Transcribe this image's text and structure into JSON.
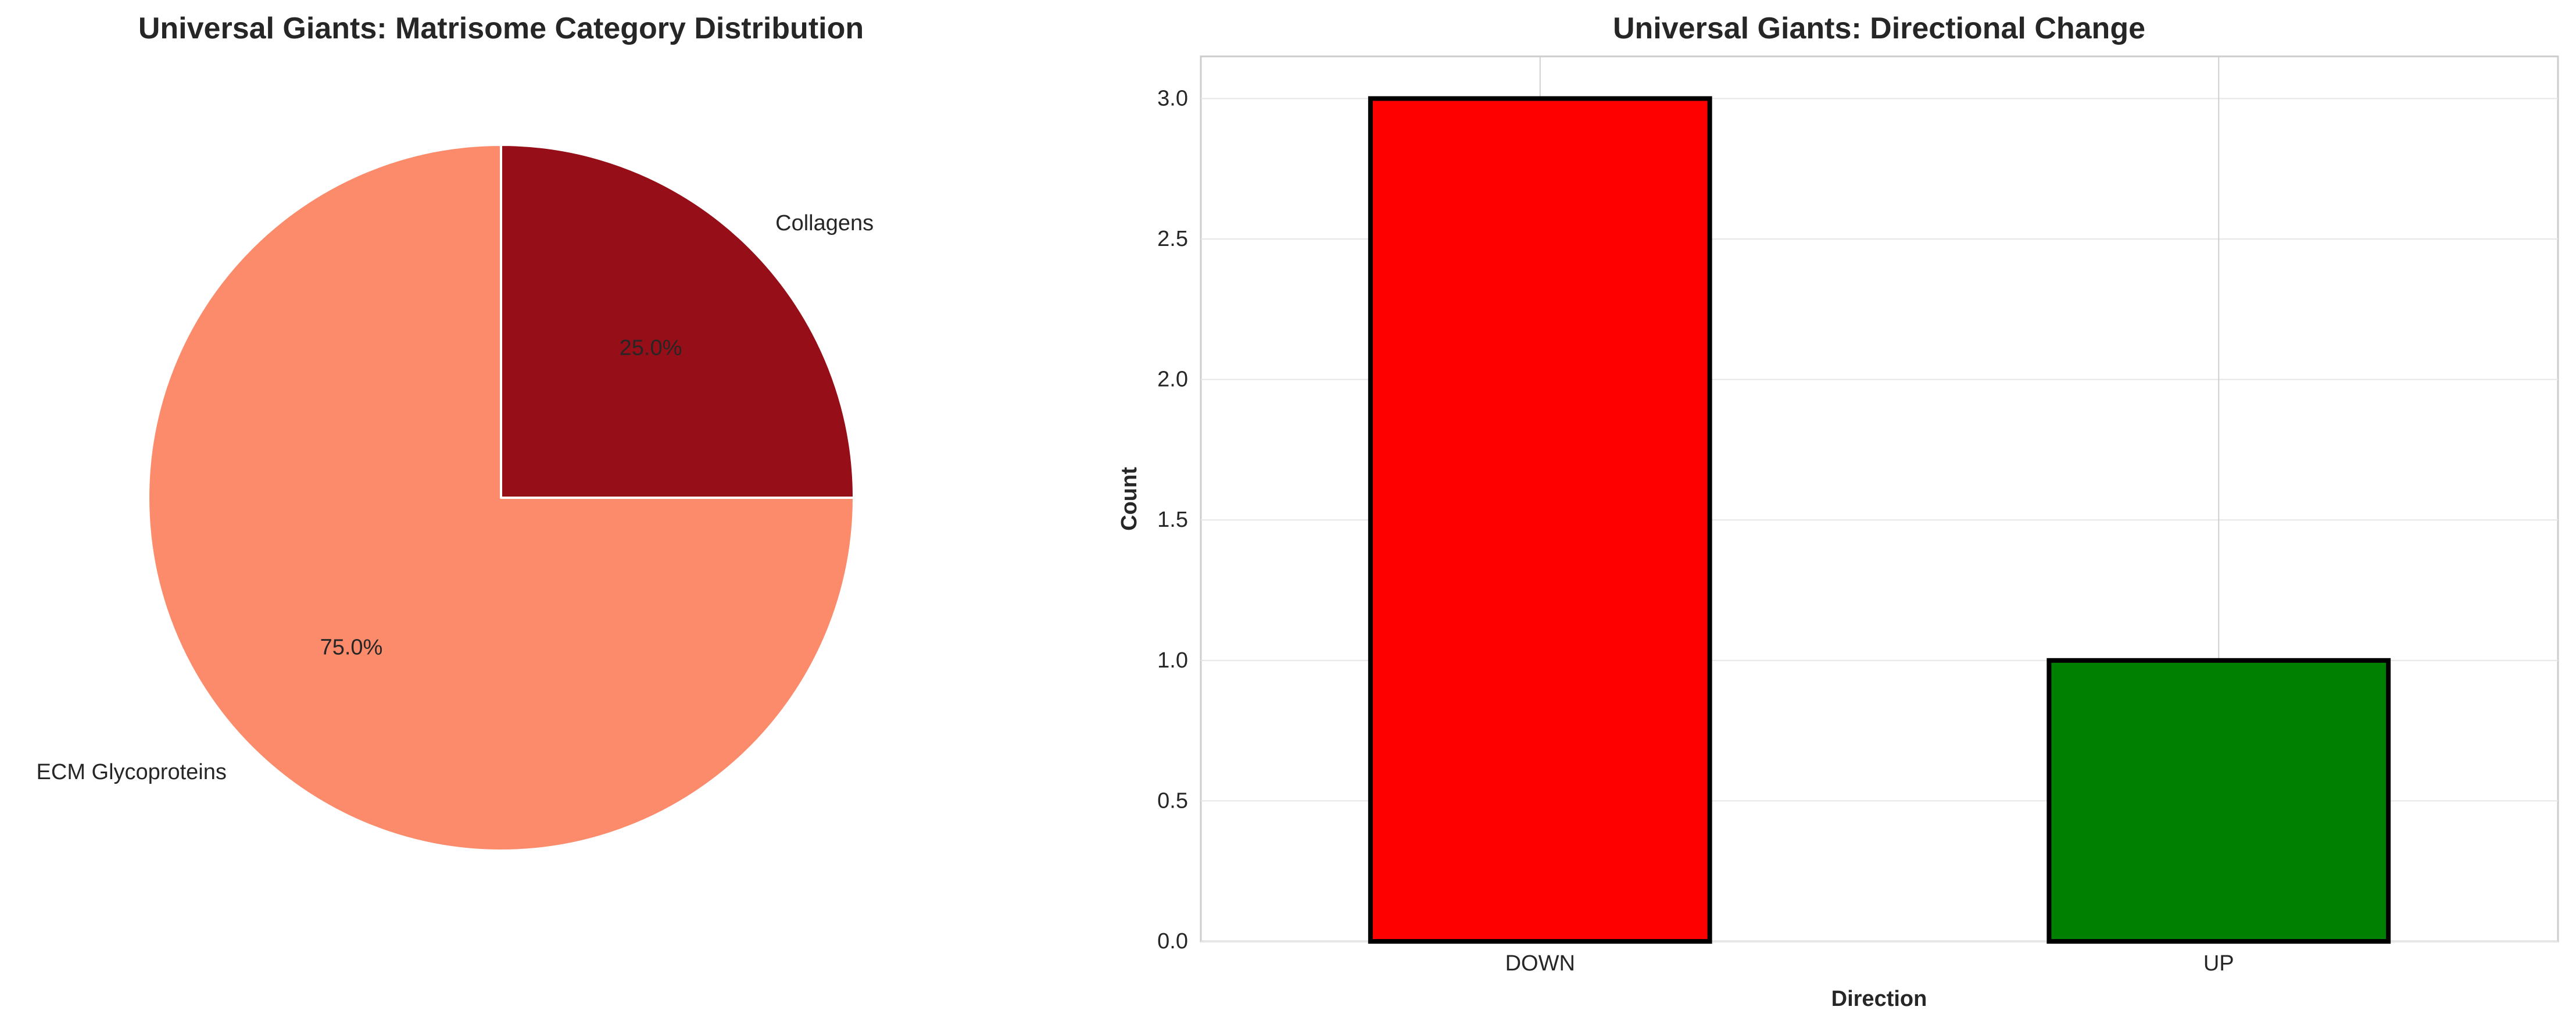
{
  "chart_data": [
    {
      "type": "pie",
      "title": "Universal Giants: Matrisome Category Distribution",
      "slices": [
        {
          "label": "Collagens",
          "value": 25.0,
          "pct_label": "25.0%",
          "color": "#960e17"
        },
        {
          "label": "ECM Glycoproteins",
          "value": 75.0,
          "pct_label": "75.0%",
          "color": "#fb8b6b"
        }
      ],
      "start_angle_deg": 90,
      "direction": "clockwise",
      "edge_color": "#ffffff"
    },
    {
      "type": "bar",
      "title": "Universal Giants: Directional Change",
      "categories": [
        "DOWN",
        "UP"
      ],
      "values": [
        3,
        1
      ],
      "colors": [
        "#ff0000",
        "#008000"
      ],
      "edge_color": "#000000",
      "xlabel": "Direction",
      "ylabel": "Count",
      "ylim": [
        0,
        3.15
      ],
      "yticks": [
        "0.0",
        "0.5",
        "1.0",
        "1.5",
        "2.0",
        "2.5",
        "3.0"
      ],
      "grid": true
    }
  ]
}
